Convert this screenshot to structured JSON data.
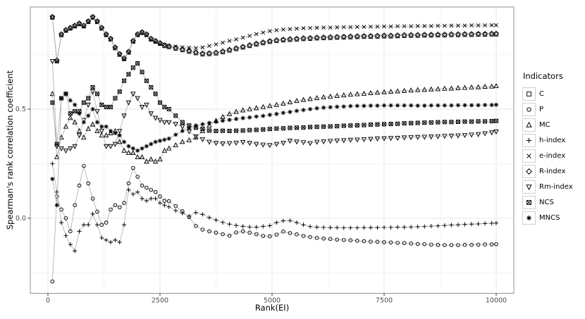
{
  "axes": {
    "x": {
      "label": "Rank(EI)",
      "ticks": [
        0,
        2500,
        5000,
        7500,
        10000
      ],
      "tick_labels": [
        "0",
        "2500",
        "5000",
        "7500",
        "10000"
      ],
      "minor_ticks": [
        1250,
        3750,
        6250,
        8750
      ],
      "range": [
        -393,
        10393
      ]
    },
    "y": {
      "label": "Spearman's rank correlation coefficient",
      "ticks": [
        0.0,
        0.5
      ],
      "tick_labels": [
        "0.0",
        "0.5"
      ],
      "minor_ticks": [
        -0.25,
        0.25,
        0.75
      ],
      "range": [
        -0.344,
        0.968
      ]
    }
  },
  "legend": {
    "title": "Indicators",
    "items": [
      {
        "label": "C",
        "marker": "square"
      },
      {
        "label": "P",
        "marker": "circle"
      },
      {
        "label": "MC",
        "marker": "triangle-up"
      },
      {
        "label": "h-index",
        "marker": "plus"
      },
      {
        "label": "e-index",
        "marker": "cross"
      },
      {
        "label": "R-index",
        "marker": "diamond"
      },
      {
        "label": "Rm-index",
        "marker": "triangle-down"
      },
      {
        "label": "NCS",
        "marker": "square-cross"
      },
      {
        "label": "MNCS",
        "marker": "asterisk"
      }
    ]
  },
  "style": {
    "line_color": "#b4b4b4",
    "marker_color": "#000000",
    "grid_major": "#e4e4e4",
    "grid_minor": "#f3f3f3",
    "panel_border": "#909090",
    "tick_color": "#333333",
    "tick_label_color": "#4d4d4d"
  },
  "chart_data": {
    "type": "line",
    "title": "",
    "xlabel": "Rank(EI)",
    "ylabel": "Spearman's rank correlation coefficient",
    "xlim": [
      0,
      10000
    ],
    "ylim": [
      -0.344,
      0.968
    ],
    "grid": "on",
    "legend_position": "right",
    "x": [
      100,
      200,
      300,
      400,
      500,
      600,
      700,
      800,
      900,
      1000,
      1100,
      1200,
      1300,
      1400,
      1500,
      1600,
      1700,
      1800,
      1900,
      2000,
      2100,
      2200,
      2300,
      2400,
      2500,
      2600,
      2700,
      2850,
      3000,
      3150,
      3300,
      3450,
      3600,
      3750,
      3900,
      4050,
      4200,
      4350,
      4500,
      4650,
      4800,
      4950,
      5100,
      5250,
      5400,
      5550,
      5700,
      5850,
      6000,
      6150,
      6300,
      6450,
      6600,
      6750,
      6900,
      7050,
      7200,
      7350,
      7500,
      7650,
      7800,
      7950,
      8100,
      8250,
      8400,
      8550,
      8700,
      8850,
      9000,
      9150,
      9300,
      9450,
      9600,
      9750,
      9900,
      10000
    ],
    "series": [
      {
        "name": "C",
        "marker": "square",
        "values": [
          0.92,
          0.72,
          0.84,
          0.86,
          0.87,
          0.88,
          0.89,
          0.88,
          0.9,
          0.92,
          0.9,
          0.87,
          0.84,
          0.82,
          0.78,
          0.75,
          0.73,
          0.76,
          0.81,
          0.84,
          0.85,
          0.84,
          0.82,
          0.81,
          0.8,
          0.79,
          0.785,
          0.778,
          0.771,
          0.764,
          0.757,
          0.752,
          0.753,
          0.756,
          0.762,
          0.769,
          0.776,
          0.783,
          0.79,
          0.797,
          0.803,
          0.809,
          0.813,
          0.816,
          0.818,
          0.82,
          0.822,
          0.823,
          0.825,
          0.826,
          0.827,
          0.828,
          0.829,
          0.83,
          0.831,
          0.832,
          0.832,
          0.833,
          0.834,
          0.834,
          0.835,
          0.836,
          0.837,
          0.837,
          0.838,
          0.838,
          0.839,
          0.839,
          0.84,
          0.84,
          0.841,
          0.841,
          0.842,
          0.842,
          0.843,
          0.843
        ]
      },
      {
        "name": "P",
        "marker": "circle",
        "values": [
          -0.29,
          0.1,
          0.04,
          0.0,
          -0.06,
          0.06,
          0.15,
          0.24,
          0.16,
          0.09,
          0.03,
          -0.03,
          -0.02,
          0.04,
          0.06,
          0.05,
          0.07,
          0.16,
          0.23,
          0.19,
          0.15,
          0.14,
          0.13,
          0.12,
          0.1,
          0.08,
          0.078,
          0.056,
          0.032,
          0.005,
          -0.035,
          -0.052,
          -0.06,
          -0.066,
          -0.073,
          -0.08,
          -0.065,
          -0.06,
          -0.066,
          -0.073,
          -0.081,
          -0.083,
          -0.075,
          -0.061,
          -0.068,
          -0.074,
          -0.081,
          -0.086,
          -0.09,
          -0.093,
          -0.095,
          -0.098,
          -0.1,
          -0.101,
          -0.103,
          -0.105,
          -0.107,
          -0.108,
          -0.11,
          -0.111,
          -0.113,
          -0.114,
          -0.116,
          -0.118,
          -0.119,
          -0.121,
          -0.122,
          -0.123,
          -0.123,
          -0.123,
          -0.122,
          -0.122,
          -0.121,
          -0.12,
          -0.12,
          -0.119
        ]
      },
      {
        "name": "MC",
        "marker": "triangle-up",
        "values": [
          0.57,
          0.28,
          0.37,
          0.42,
          0.46,
          0.44,
          0.4,
          0.37,
          0.41,
          0.43,
          0.4,
          0.38,
          0.38,
          0.39,
          0.4,
          0.35,
          0.31,
          0.3,
          0.3,
          0.28,
          0.28,
          0.26,
          0.27,
          0.26,
          0.27,
          0.31,
          0.32,
          0.335,
          0.35,
          0.358,
          0.37,
          0.4,
          0.425,
          0.447,
          0.465,
          0.478,
          0.488,
          0.495,
          0.5,
          0.505,
          0.51,
          0.515,
          0.52,
          0.526,
          0.532,
          0.538,
          0.543,
          0.547,
          0.551,
          0.555,
          0.558,
          0.561,
          0.564,
          0.567,
          0.569,
          0.571,
          0.574,
          0.576,
          0.578,
          0.58,
          0.582,
          0.584,
          0.586,
          0.588,
          0.589,
          0.591,
          0.592,
          0.594,
          0.595,
          0.597,
          0.598,
          0.6,
          0.601,
          0.603,
          0.604,
          0.606
        ]
      },
      {
        "name": "h-index",
        "marker": "plus",
        "values": [
          0.25,
          0.12,
          -0.02,
          -0.08,
          -0.12,
          -0.15,
          -0.06,
          -0.03,
          -0.03,
          0.02,
          -0.03,
          -0.09,
          -0.1,
          -0.11,
          -0.1,
          -0.11,
          -0.03,
          0.13,
          0.11,
          0.12,
          0.09,
          0.08,
          0.09,
          0.09,
          0.07,
          0.06,
          0.052,
          0.035,
          0.023,
          0.01,
          0.026,
          0.018,
          0.003,
          -0.008,
          -0.019,
          -0.027,
          -0.033,
          -0.037,
          -0.04,
          -0.041,
          -0.037,
          -0.034,
          -0.02,
          -0.012,
          -0.011,
          -0.02,
          -0.03,
          -0.038,
          -0.041,
          -0.042,
          -0.043,
          -0.043,
          -0.044,
          -0.044,
          -0.044,
          -0.043,
          -0.043,
          -0.043,
          -0.042,
          -0.042,
          -0.041,
          -0.041,
          -0.04,
          -0.039,
          -0.038,
          -0.036,
          -0.035,
          -0.033,
          -0.031,
          -0.03,
          -0.028,
          -0.027,
          -0.026,
          -0.024,
          -0.023,
          -0.022
        ]
      },
      {
        "name": "e-index",
        "marker": "cross",
        "values": [
          0.92,
          0.72,
          0.84,
          0.86,
          0.87,
          0.88,
          0.89,
          0.88,
          0.9,
          0.92,
          0.9,
          0.87,
          0.84,
          0.82,
          0.78,
          0.75,
          0.73,
          0.76,
          0.81,
          0.84,
          0.85,
          0.84,
          0.82,
          0.81,
          0.8,
          0.795,
          0.79,
          0.787,
          0.784,
          0.782,
          0.78,
          0.783,
          0.79,
          0.797,
          0.805,
          0.813,
          0.82,
          0.828,
          0.836,
          0.844,
          0.851,
          0.858,
          0.862,
          0.865,
          0.867,
          0.869,
          0.871,
          0.872,
          0.873,
          0.874,
          0.874,
          0.875,
          0.876,
          0.876,
          0.877,
          0.877,
          0.878,
          0.878,
          0.879,
          0.879,
          0.88,
          0.88,
          0.88,
          0.881,
          0.881,
          0.881,
          0.882,
          0.882,
          0.883,
          0.883,
          0.883,
          0.884,
          0.884,
          0.884,
          0.885,
          0.885
        ]
      },
      {
        "name": "R-index",
        "marker": "diamond",
        "values": [
          0.924,
          0.724,
          0.844,
          0.864,
          0.874,
          0.884,
          0.894,
          0.884,
          0.904,
          0.924,
          0.904,
          0.874,
          0.844,
          0.824,
          0.784,
          0.754,
          0.734,
          0.764,
          0.814,
          0.844,
          0.854,
          0.844,
          0.824,
          0.814,
          0.804,
          0.794,
          0.789,
          0.782,
          0.775,
          0.768,
          0.761,
          0.756,
          0.757,
          0.76,
          0.766,
          0.773,
          0.78,
          0.787,
          0.794,
          0.801,
          0.807,
          0.813,
          0.817,
          0.82,
          0.822,
          0.824,
          0.826,
          0.827,
          0.829,
          0.83,
          0.831,
          0.832,
          0.833,
          0.834,
          0.835,
          0.836,
          0.836,
          0.837,
          0.838,
          0.838,
          0.839,
          0.84,
          0.841,
          0.841,
          0.842,
          0.842,
          0.843,
          0.843,
          0.844,
          0.844,
          0.845,
          0.845,
          0.846,
          0.846,
          0.847,
          0.847
        ]
      },
      {
        "name": "Rm-index",
        "marker": "triangle-down",
        "values": [
          0.72,
          0.33,
          0.32,
          0.31,
          0.32,
          0.33,
          0.38,
          0.45,
          0.52,
          0.58,
          0.49,
          0.4,
          0.33,
          0.33,
          0.34,
          0.4,
          0.47,
          0.53,
          0.57,
          0.55,
          0.51,
          0.52,
          0.48,
          0.46,
          0.45,
          0.44,
          0.44,
          0.432,
          0.42,
          0.398,
          0.375,
          0.362,
          0.35,
          0.345,
          0.342,
          0.344,
          0.346,
          0.349,
          0.345,
          0.34,
          0.337,
          0.335,
          0.34,
          0.345,
          0.355,
          0.351,
          0.348,
          0.344,
          0.35,
          0.352,
          0.354,
          0.356,
          0.357,
          0.359,
          0.36,
          0.362,
          0.363,
          0.365,
          0.366,
          0.367,
          0.368,
          0.37,
          0.371,
          0.372,
          0.373,
          0.374,
          0.375,
          0.377,
          0.378,
          0.379,
          0.381,
          0.383,
          0.385,
          0.389,
          0.393,
          0.397
        ]
      },
      {
        "name": "NCS",
        "marker": "square-cross",
        "values": [
          0.53,
          0.34,
          0.55,
          0.57,
          0.48,
          0.49,
          0.49,
          0.53,
          0.55,
          0.6,
          0.57,
          0.52,
          0.51,
          0.51,
          0.55,
          0.58,
          0.63,
          0.66,
          0.69,
          0.71,
          0.67,
          0.63,
          0.6,
          0.57,
          0.53,
          0.51,
          0.5,
          0.47,
          0.44,
          0.425,
          0.415,
          0.41,
          0.402,
          0.4,
          0.401,
          0.4,
          0.401,
          0.402,
          0.404,
          0.405,
          0.407,
          0.409,
          0.411,
          0.412,
          0.414,
          0.415,
          0.416,
          0.418,
          0.419,
          0.42,
          0.421,
          0.422,
          0.424,
          0.425,
          0.426,
          0.427,
          0.429,
          0.43,
          0.431,
          0.432,
          0.433,
          0.435,
          0.436,
          0.437,
          0.438,
          0.439,
          0.44,
          0.441,
          0.441,
          0.442,
          0.443,
          0.443,
          0.444,
          0.444,
          0.445,
          0.446
        ]
      },
      {
        "name": "MNCS",
        "marker": "asterisk",
        "values": [
          0.18,
          0.06,
          0.55,
          0.57,
          0.54,
          0.52,
          0.48,
          0.44,
          0.47,
          0.5,
          0.44,
          0.42,
          0.42,
          0.4,
          0.39,
          0.38,
          0.35,
          0.33,
          0.32,
          0.31,
          0.32,
          0.33,
          0.34,
          0.35,
          0.355,
          0.36,
          0.365,
          0.383,
          0.4,
          0.413,
          0.425,
          0.431,
          0.437,
          0.442,
          0.447,
          0.451,
          0.455,
          0.459,
          0.462,
          0.466,
          0.469,
          0.474,
          0.478,
          0.483,
          0.487,
          0.492,
          0.496,
          0.5,
          0.504,
          0.507,
          0.509,
          0.511,
          0.512,
          0.514,
          0.515,
          0.515,
          0.516,
          0.516,
          0.517,
          0.517,
          0.517,
          0.517,
          0.517,
          0.516,
          0.516,
          0.517,
          0.517,
          0.517,
          0.517,
          0.518,
          0.518,
          0.518,
          0.518,
          0.519,
          0.519,
          0.52
        ]
      }
    ]
  }
}
